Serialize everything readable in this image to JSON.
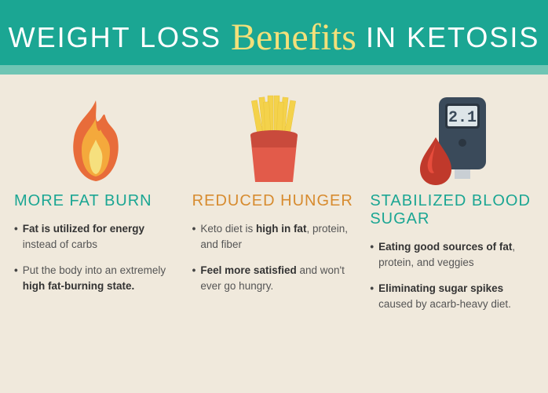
{
  "header": {
    "title_pre": "Weight Loss",
    "title_script": "Benefits",
    "title_post": "in Ketosis",
    "bg_color": "#1ba693",
    "accent_color": "#6fc5b4",
    "script_color": "#f3e07a"
  },
  "columns": [
    {
      "icon": "flame",
      "heading": "More Fat Burn",
      "heading_color": "#1ba693",
      "bullets": [
        {
          "html": "<b>Fat is utilized for energy</b> instead of carbs"
        },
        {
          "html": "Put the body into an extremely <b>high fat-burning state.</b>"
        }
      ],
      "icon_colors": {
        "outer": "#e86c3a",
        "mid": "#f4a93c",
        "inner": "#f6e07e"
      }
    },
    {
      "icon": "fries",
      "heading": "Reduced Hunger",
      "heading_color": "#d78b2f",
      "bullets": [
        {
          "html": "Keto diet is <b>high in fat</b>, protein, and fiber"
        },
        {
          "html": "<b>Feel more satisfied</b> and won't ever go hungry."
        }
      ],
      "icon_colors": {
        "box": "#e25b4a",
        "box_dark": "#c94a3c",
        "fries": "#f4d24b"
      }
    },
    {
      "icon": "meter",
      "heading": "Stabilized Blood Sugar",
      "heading_color": "#1ba693",
      "bullets": [
        {
          "html": "<b>Eating good sources of fat</b>, protein, and veggies"
        },
        {
          "html": "<b>Eliminating sugar spikes</b> caused by acarb-heavy diet."
        }
      ],
      "icon_colors": {
        "meter_body": "#3a4a5a",
        "screen": "#dde5e8",
        "display_text": "2.1",
        "drop": "#c0392b",
        "drop_hl": "#e74c3c"
      }
    }
  ],
  "background_color": "#f0e9dc"
}
